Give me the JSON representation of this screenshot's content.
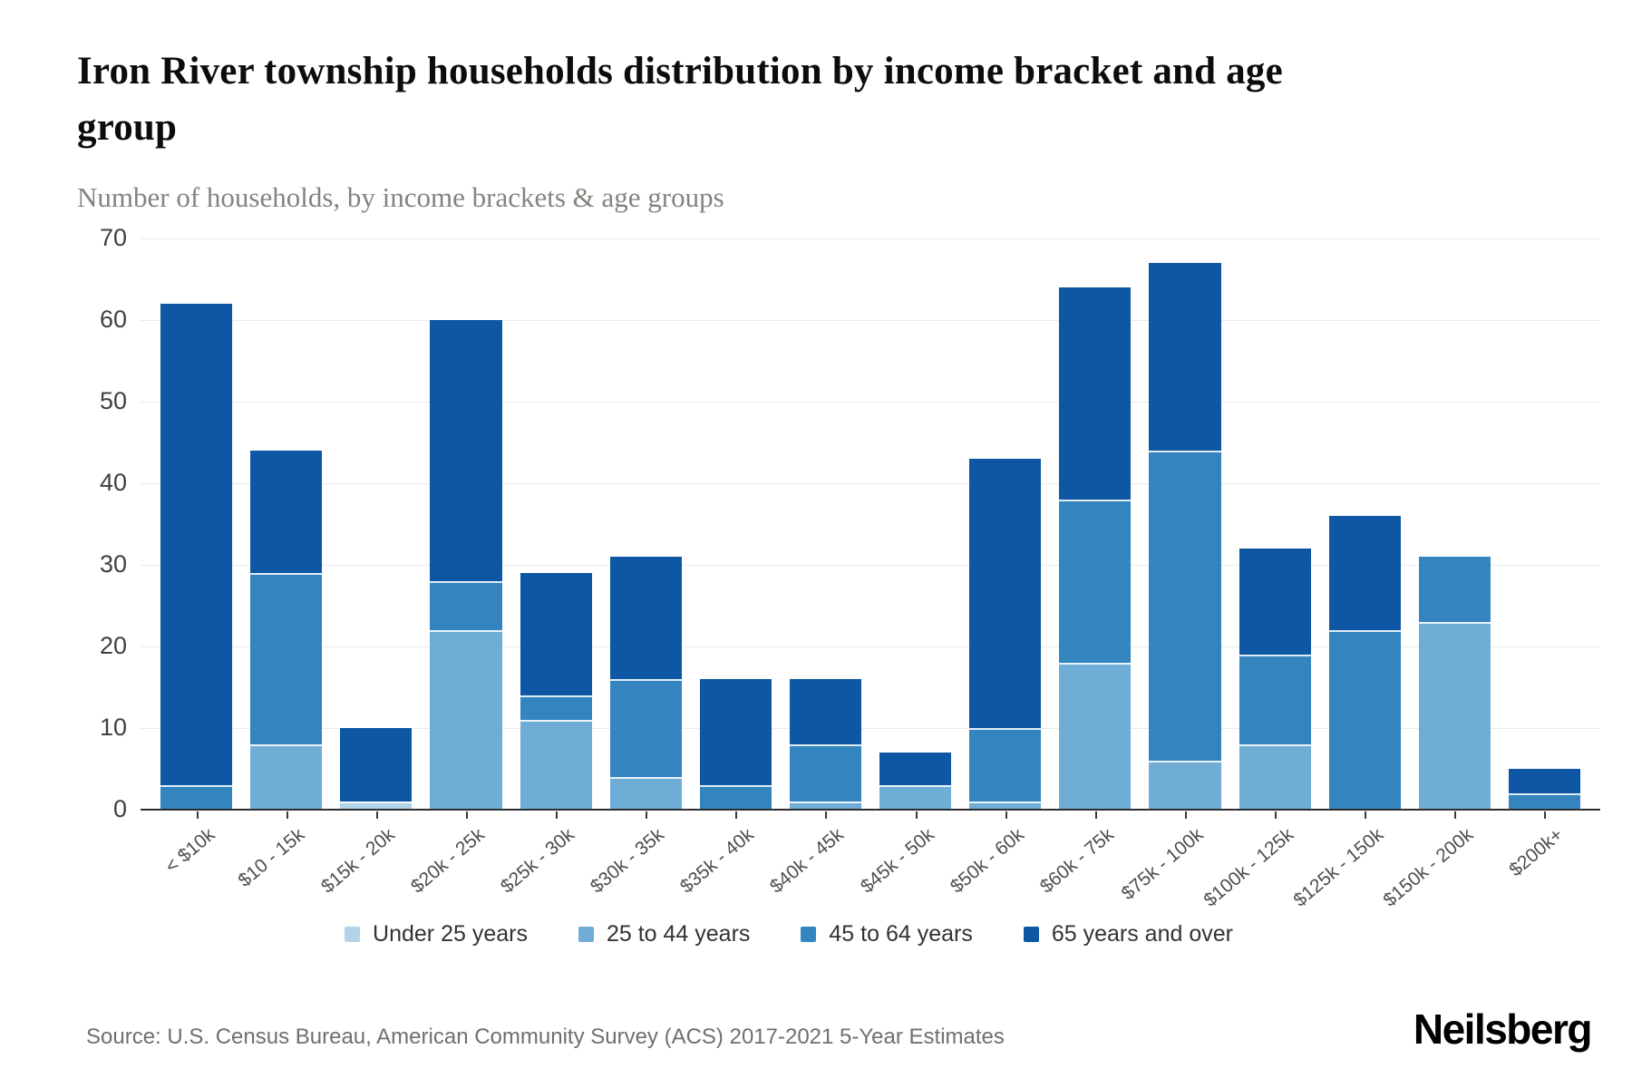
{
  "header": {
    "title": "Iron River township households distribution by income bracket and age group",
    "subtitle": "Number of households, by income brackets & age groups"
  },
  "chart_data": {
    "type": "bar",
    "stacked": true,
    "title": "Iron River township households distribution by income bracket and age group",
    "xlabel": "",
    "ylabel": "Number of households",
    "ylim": [
      0,
      70
    ],
    "yticks": [
      0,
      10,
      20,
      30,
      40,
      50,
      60,
      70
    ],
    "grid": true,
    "legend_position": "bottom",
    "categories": [
      "< $10k",
      "$10 - 15k",
      "$15k - 20k",
      "$20k - 25k",
      "$25k - 30k",
      "$30k - 35k",
      "$35k - 40k",
      "$40k - 45k",
      "$45k - 50k",
      "$50k - 60k",
      "$60k - 75k",
      "$75k - 100k",
      "$100k - 125k",
      "$125k - 150k",
      "$150k - 200k",
      "$200k+"
    ],
    "series": [
      {
        "name": "Under 25 years",
        "color": "#b3d3e8",
        "values": [
          0,
          0,
          1,
          0,
          0,
          0,
          0,
          0,
          0,
          0,
          0,
          0,
          0,
          0,
          0,
          0
        ]
      },
      {
        "name": "25 to 44 years",
        "color": "#6fadd6",
        "values": [
          0,
          8,
          0,
          22,
          11,
          4,
          0,
          1,
          3,
          1,
          18,
          6,
          8,
          0,
          23,
          0
        ]
      },
      {
        "name": "45 to 64 years",
        "color": "#3484c0",
        "values": [
          3,
          21,
          0,
          6,
          3,
          12,
          3,
          7,
          0,
          9,
          20,
          38,
          11,
          22,
          8,
          2
        ]
      },
      {
        "name": "65 years and over",
        "color": "#0d57a4",
        "values": [
          59,
          15,
          9,
          32,
          15,
          15,
          13,
          8,
          4,
          33,
          26,
          23,
          13,
          14,
          0,
          3
        ]
      }
    ],
    "totals": [
      62,
      44,
      10,
      60,
      29,
      31,
      16,
      16,
      7,
      43,
      64,
      67,
      32,
      36,
      31,
      5
    ]
  },
  "footer": {
    "source": "Source: U.S. Census Bureau, American Community Survey (ACS) 2017-2021 5-Year Estimates",
    "brand": "Neilsberg"
  }
}
